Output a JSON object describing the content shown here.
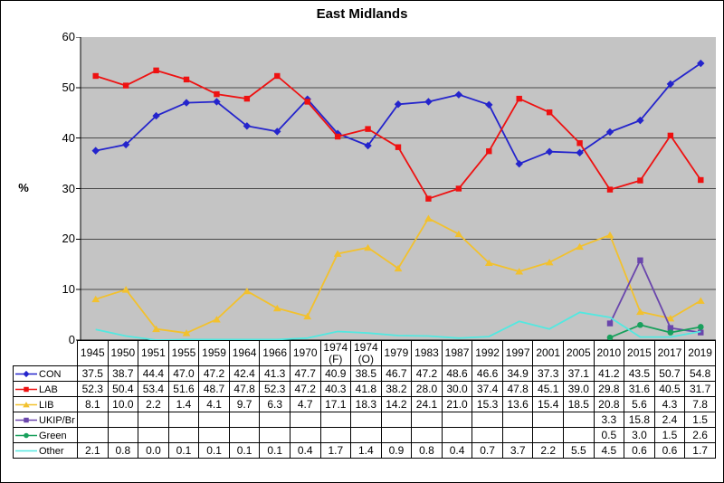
{
  "chart_data": {
    "type": "line",
    "title": "East Midlands",
    "ylabel": "%",
    "xlabel": "",
    "ylim": [
      0,
      60
    ],
    "yticks": [
      0,
      10,
      20,
      30,
      40,
      50,
      60
    ],
    "grid": true,
    "grid_color": "#4a4a4a",
    "axis_color": "#000000",
    "plot_bg": "#c4c4c4",
    "legend_position": "table-left",
    "x_axis_labels": "shown-as-table-header",
    "categories": [
      "1945",
      "1950",
      "1951",
      "1955",
      "1959",
      "1964",
      "1966",
      "1970",
      "1974 (F)",
      "1974 (O)",
      "1979",
      "1983",
      "1987",
      "1992",
      "1997",
      "2001",
      "2005",
      "2010",
      "2015",
      "2017",
      "2019"
    ],
    "series": [
      {
        "name": "CON",
        "color": "#2424cc",
        "marker": "diamond",
        "values": [
          37.5,
          38.7,
          44.4,
          47.0,
          47.2,
          42.4,
          41.3,
          47.7,
          40.9,
          38.5,
          46.7,
          47.2,
          48.6,
          46.6,
          34.9,
          37.3,
          37.1,
          41.2,
          43.5,
          50.7,
          54.8
        ]
      },
      {
        "name": "LAB",
        "color": "#ee1111",
        "marker": "square",
        "values": [
          52.3,
          50.4,
          53.4,
          51.6,
          48.7,
          47.8,
          52.3,
          47.2,
          40.3,
          41.8,
          38.2,
          28.0,
          30.0,
          37.4,
          47.8,
          45.1,
          39.0,
          29.8,
          31.6,
          40.5,
          31.7
        ]
      },
      {
        "name": "LIB",
        "color": "#f2c12e",
        "marker": "triangle",
        "values": [
          8.1,
          10.0,
          2.2,
          1.4,
          4.1,
          9.7,
          6.3,
          4.7,
          17.1,
          18.3,
          14.2,
          24.1,
          21.0,
          15.3,
          13.6,
          15.4,
          18.5,
          20.8,
          5.6,
          4.3,
          7.8
        ]
      },
      {
        "name": "UKIP/Br",
        "color": "#6a46ac",
        "marker": "square",
        "values": [
          null,
          null,
          null,
          null,
          null,
          null,
          null,
          null,
          null,
          null,
          null,
          null,
          null,
          null,
          null,
          null,
          null,
          3.3,
          15.8,
          2.4,
          1.5
        ]
      },
      {
        "name": "Green",
        "color": "#18a05c",
        "marker": "circle",
        "values": [
          null,
          null,
          null,
          null,
          null,
          null,
          null,
          null,
          null,
          null,
          null,
          null,
          null,
          null,
          null,
          null,
          null,
          0.5,
          3.0,
          1.5,
          2.6
        ]
      },
      {
        "name": "Other",
        "color": "#53e8e0",
        "marker": "none",
        "values": [
          2.1,
          0.8,
          0.0,
          0.1,
          0.1,
          0.1,
          0.1,
          0.4,
          1.7,
          1.4,
          0.9,
          0.8,
          0.4,
          0.7,
          3.7,
          2.2,
          5.5,
          4.5,
          0.6,
          0.6,
          1.7
        ]
      }
    ]
  }
}
